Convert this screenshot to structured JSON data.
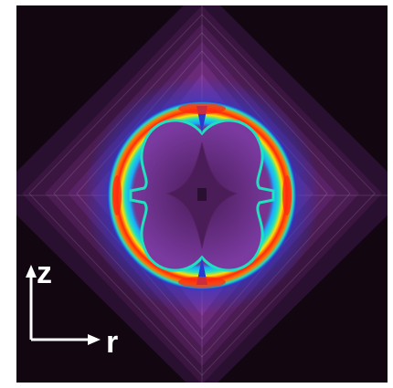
{
  "figure": {
    "axes": {
      "vertical_label": "z",
      "horizontal_label": "r",
      "arrow_color": "#ffffff"
    },
    "colormap": [
      "#120611",
      "#3a1540",
      "#6a2a78",
      "#7a3aa0",
      "#2a3ad0",
      "#1aa8ff",
      "#20e0c0",
      "#a0f040",
      "#ffe000",
      "#ff7a00",
      "#ff2a10"
    ],
    "background_color": "#120611",
    "frame_color": "#ffffff"
  }
}
